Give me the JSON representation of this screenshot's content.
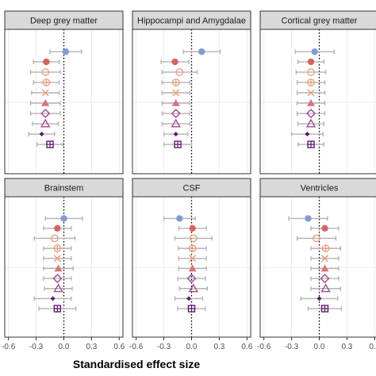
{
  "chart_data": {
    "type": "forest",
    "xlabel": "Standardised effect size",
    "xticks": [
      "-0.6",
      "-0.3",
      "0.0",
      "0.3",
      "0.6"
    ],
    "xlim": [
      -0.64,
      0.64
    ],
    "colors": {
      "blue": "#7f9cd6",
      "red": "#d9625f",
      "orange": "#e8a07a",
      "rose": "#d9727f",
      "purple": "#a34891",
      "dark_purple": "#5c1a6e",
      "error_bar": "#b3b3b3",
      "strip_fill": "#d9d9d9",
      "panel_border": "#333333",
      "grid": "#ebebeb"
    },
    "rows": [
      {
        "shape": "circle",
        "color": "red"
      },
      {
        "shape": "open-circle",
        "color": "orange"
      },
      {
        "shape": "circle-plus",
        "color": "orange"
      },
      {
        "shape": "cross",
        "color": "orange"
      },
      {
        "shape": "triangle",
        "color": "rose"
      },
      {
        "shape": "diamond",
        "color": "purple"
      },
      {
        "shape": "open-triangle",
        "color": "purple"
      },
      {
        "shape": "small-diamond",
        "color": "dark_purple"
      },
      {
        "shape": "square-plus",
        "color": "dark_purple"
      }
    ],
    "panels": [
      {
        "title": "Deep grey matter",
        "top": {
          "est": 0.02,
          "lo": -0.15,
          "hi": 0.19
        },
        "estimates": [
          -0.19,
          -0.2,
          -0.19,
          -0.2,
          -0.2,
          -0.2,
          -0.2,
          -0.24,
          -0.15
        ],
        "lower": [
          -0.33,
          -0.36,
          -0.33,
          -0.35,
          -0.36,
          -0.36,
          -0.34,
          -0.38,
          -0.29
        ],
        "upper": [
          -0.05,
          -0.04,
          -0.05,
          -0.05,
          -0.04,
          -0.04,
          -0.06,
          -0.1,
          -0.01
        ]
      },
      {
        "title": "Hippocampi and Amygdalae",
        "top": {
          "est": 0.11,
          "lo": -0.09,
          "hi": 0.31
        },
        "estimates": [
          -0.18,
          -0.13,
          -0.17,
          -0.17,
          -0.17,
          -0.17,
          -0.17,
          -0.17,
          -0.15
        ],
        "lower": [
          -0.33,
          -0.32,
          -0.32,
          -0.32,
          -0.32,
          -0.32,
          -0.32,
          -0.3,
          -0.3
        ],
        "upper": [
          -0.03,
          0.06,
          -0.02,
          -0.02,
          -0.02,
          -0.02,
          -0.02,
          -0.04,
          0.0
        ]
      },
      {
        "title": "Cortical grey matter",
        "top": {
          "est": -0.05,
          "lo": -0.26,
          "hi": 0.16
        },
        "estimates": [
          -0.09,
          -0.09,
          -0.09,
          -0.09,
          -0.09,
          -0.09,
          -0.09,
          -0.13,
          -0.09
        ],
        "lower": [
          -0.23,
          -0.25,
          -0.24,
          -0.24,
          -0.24,
          -0.24,
          -0.23,
          -0.3,
          -0.23
        ],
        "upper": [
          0.05,
          0.07,
          0.06,
          0.06,
          0.06,
          0.06,
          0.05,
          0.04,
          0.05
        ]
      },
      {
        "title": "Brainstem",
        "top": {
          "est": 0.0,
          "lo": -0.2,
          "hi": 0.2
        },
        "estimates": [
          -0.07,
          -0.1,
          -0.07,
          -0.07,
          -0.06,
          -0.07,
          -0.06,
          -0.12,
          -0.07
        ],
        "lower": [
          -0.22,
          -0.32,
          -0.22,
          -0.22,
          -0.22,
          -0.22,
          -0.21,
          -0.32,
          -0.27
        ],
        "upper": [
          0.08,
          0.12,
          0.08,
          0.08,
          0.1,
          0.08,
          0.09,
          0.08,
          0.13
        ]
      },
      {
        "title": "CSF",
        "top": {
          "est": -0.13,
          "lo": -0.3,
          "hi": 0.04
        },
        "estimates": [
          0.01,
          0.02,
          0.01,
          0.01,
          0.01,
          0.0,
          0.02,
          -0.03,
          0.0
        ],
        "lower": [
          -0.14,
          -0.18,
          -0.14,
          -0.14,
          -0.14,
          -0.15,
          -0.13,
          -0.18,
          -0.15
        ],
        "upper": [
          0.16,
          0.22,
          0.16,
          0.16,
          0.16,
          0.15,
          0.17,
          0.12,
          0.15
        ]
      },
      {
        "title": "Ventricles",
        "top": {
          "est": -0.12,
          "lo": -0.33,
          "hi": 0.09
        },
        "estimates": [
          0.06,
          -0.03,
          0.07,
          0.06,
          0.06,
          0.06,
          0.07,
          0.0,
          0.06
        ],
        "lower": [
          -0.09,
          -0.24,
          -0.09,
          -0.09,
          -0.09,
          -0.09,
          -0.09,
          -0.2,
          -0.12
        ],
        "upper": [
          0.21,
          0.18,
          0.23,
          0.21,
          0.21,
          0.21,
          0.23,
          0.2,
          0.24
        ]
      }
    ]
  }
}
